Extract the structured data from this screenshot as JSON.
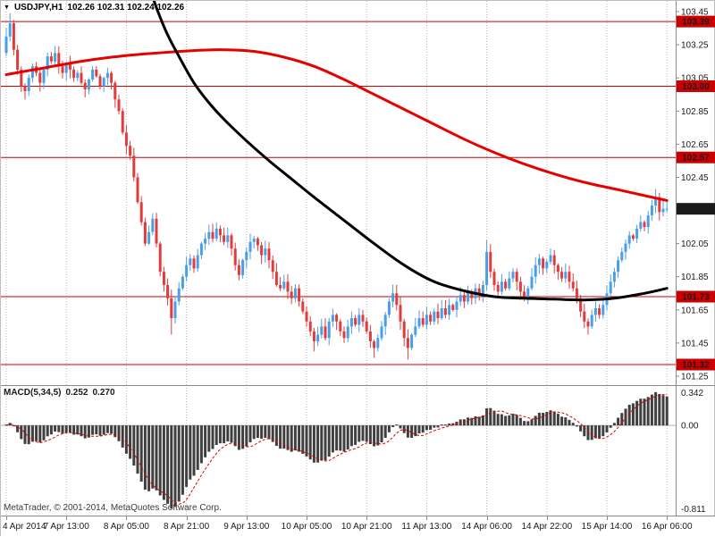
{
  "title": {
    "dropdown_icon": "▼",
    "symbol": "USDJPY,H1",
    "ohlc": "102.26 102.31 102.24 102.26"
  },
  "copyright": "MetaTrader, © 2001-2014, MetaQuotes Software Corp.",
  "colors": {
    "bull": "#4a9ee8",
    "bear": "#e23b3b",
    "ma_fast_black": "#000000",
    "ma_slow_red": "#e60000",
    "level_line": "#cc0000",
    "tag_level_bg": "#cc0000",
    "tag_price_bg": "#1a1a1a",
    "tag_text": "#ffffff",
    "grid": "#b8b8b8",
    "axis_text": "#1a1a1a",
    "frame": "#8a8a8a",
    "hist": "#3f3f3f",
    "signal": "#dd0000",
    "zero_line": "#b0b0b0"
  },
  "chart_data": [
    {
      "type": "candlestick",
      "symbol": "USDJPY",
      "timeframe": "H1",
      "ylim": [
        101.25,
        103.45
      ],
      "y_ticks": [
        103.45,
        103.25,
        103.05,
        102.85,
        102.65,
        102.45,
        102.05,
        101.85,
        101.65,
        101.45,
        101.25
      ],
      "levels": [
        103.39,
        103.0,
        102.57,
        101.73,
        101.32
      ],
      "current_price": 102.26,
      "x_ticks": {
        "labels": [
          "4 Apr 2014",
          "7 Apr 13:00",
          "8 Apr 05:00",
          "8 Apr 21:00",
          "9 Apr 13:00",
          "10 Apr 05:00",
          "10 Apr 21:00",
          "11 Apr 13:00",
          "14 Apr 06:00",
          "14 Apr 22:00",
          "15 Apr 14:00",
          "16 Apr 06:00"
        ],
        "bar_index": [
          0,
          16,
          32,
          48,
          64,
          80,
          96,
          112,
          128,
          144,
          160,
          176
        ]
      },
      "first_open": 103.2,
      "closes": [
        103.3,
        103.38,
        103.22,
        103.1,
        103.0,
        102.97,
        103.05,
        103.12,
        103.08,
        103.02,
        103.1,
        103.18,
        103.15,
        103.2,
        103.12,
        103.08,
        103.14,
        103.1,
        103.05,
        103.08,
        103.02,
        102.98,
        103.04,
        103.1,
        103.06,
        103.0,
        103.05,
        103.08,
        103.02,
        102.92,
        102.85,
        102.72,
        102.64,
        102.58,
        102.45,
        102.3,
        102.18,
        102.05,
        102.12,
        102.2,
        102.05,
        101.88,
        101.8,
        101.72,
        101.6,
        101.7,
        101.78,
        101.85,
        101.92,
        101.96,
        101.9,
        101.98,
        102.05,
        102.08,
        102.12,
        102.08,
        102.14,
        102.1,
        102.06,
        102.1,
        102.02,
        101.92,
        101.86,
        101.95,
        102.0,
        102.06,
        102.08,
        102.04,
        101.98,
        102.02,
        101.95,
        101.88,
        101.8,
        101.78,
        101.82,
        101.76,
        101.72,
        101.78,
        101.7,
        101.64,
        101.58,
        101.52,
        101.46,
        101.5,
        101.55,
        101.48,
        101.58,
        101.62,
        101.58,
        101.52,
        101.48,
        101.55,
        101.6,
        101.56,
        101.62,
        101.58,
        101.52,
        101.46,
        101.42,
        101.48,
        101.55,
        101.62,
        101.7,
        101.75,
        101.68,
        101.58,
        101.48,
        101.42,
        101.5,
        101.55,
        101.6,
        101.56,
        101.62,
        101.58,
        101.64,
        101.6,
        101.66,
        101.62,
        101.68,
        101.65,
        101.7,
        101.74,
        101.7,
        101.76,
        101.72,
        101.78,
        101.74,
        101.8,
        102.0,
        101.88,
        101.8,
        101.76,
        101.82,
        101.78,
        101.84,
        101.88,
        101.82,
        101.76,
        101.72,
        101.78,
        101.85,
        101.92,
        101.96,
        101.9,
        101.94,
        101.98,
        101.92,
        101.88,
        101.84,
        101.88,
        101.82,
        101.78,
        101.72,
        101.64,
        101.58,
        101.55,
        101.62,
        101.66,
        101.62,
        101.68,
        101.75,
        101.82,
        101.88,
        101.95,
        102.0,
        102.05,
        102.1,
        102.08,
        102.14,
        102.18,
        102.15,
        102.22,
        102.28,
        102.33,
        102.24,
        102.26,
        102.26
      ],
      "wick_overrides": {
        "1": {
          "high": 103.44
        },
        "5": {
          "low": 102.92
        },
        "44": {
          "low": 101.5
        },
        "82": {
          "low": 101.4
        },
        "98": {
          "low": 101.36
        },
        "107": {
          "low": 101.35
        },
        "128": {
          "high": 102.07
        },
        "155": {
          "low": 101.5
        },
        "173": {
          "high": 102.38
        },
        "176": {
          "high": 102.31,
          "low": 102.24
        }
      },
      "ma_slow_red": [
        [
          0,
          103.07
        ],
        [
          10,
          103.11
        ],
        [
          20,
          103.15
        ],
        [
          30,
          103.18
        ],
        [
          40,
          103.2
        ],
        [
          50,
          103.215
        ],
        [
          58,
          103.22
        ],
        [
          66,
          103.21
        ],
        [
          74,
          103.175
        ],
        [
          82,
          103.12
        ],
        [
          90,
          103.04
        ],
        [
          98,
          102.95
        ],
        [
          106,
          102.86
        ],
        [
          114,
          102.77
        ],
        [
          122,
          102.68
        ],
        [
          130,
          102.6
        ],
        [
          138,
          102.53
        ],
        [
          146,
          102.47
        ],
        [
          154,
          102.42
        ],
        [
          162,
          102.38
        ],
        [
          170,
          102.34
        ],
        [
          176,
          102.31
        ]
      ],
      "ma_fast_black": [
        [
          34,
          104.05
        ],
        [
          38,
          103.62
        ],
        [
          42,
          103.36
        ],
        [
          46,
          103.18
        ],
        [
          50,
          103.02
        ],
        [
          54,
          102.9
        ],
        [
          58,
          102.8
        ],
        [
          64,
          102.67
        ],
        [
          70,
          102.55
        ],
        [
          76,
          102.44
        ],
        [
          82,
          102.33
        ],
        [
          90,
          102.19
        ],
        [
          98,
          102.05
        ],
        [
          106,
          101.92
        ],
        [
          114,
          101.82
        ],
        [
          122,
          101.765
        ],
        [
          130,
          101.73
        ],
        [
          138,
          101.72
        ],
        [
          146,
          101.715
        ],
        [
          154,
          101.71
        ],
        [
          162,
          101.72
        ],
        [
          170,
          101.75
        ],
        [
          176,
          101.78
        ]
      ]
    },
    {
      "type": "bar",
      "title": "MACD(5,34,5)",
      "params": {
        "fast_ema": 5,
        "slow_ema": 34,
        "signal_period": 5
      },
      "macd_display": "0.252",
      "signal_display": "0.270",
      "y_ticks": [
        "0.342",
        "0.00",
        "-0.811"
      ]
    }
  ]
}
